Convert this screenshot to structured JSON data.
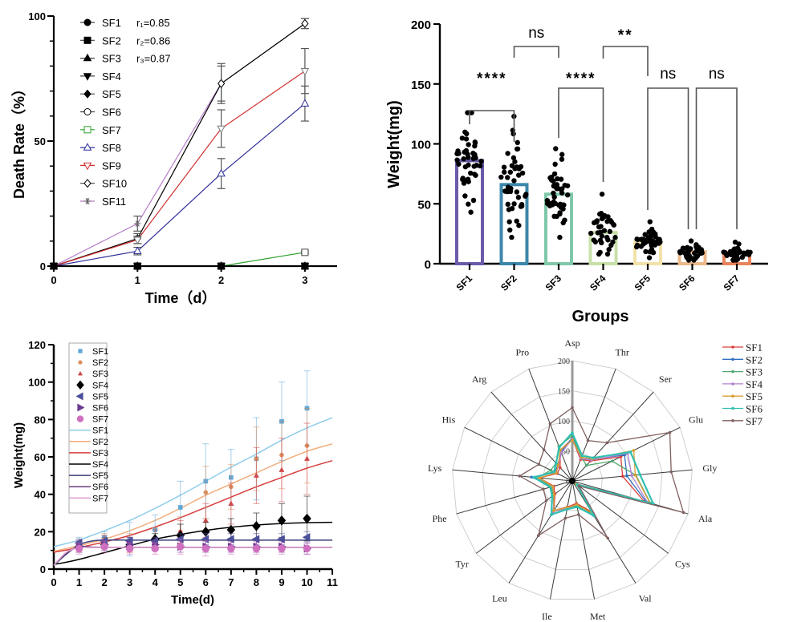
{
  "chart_data": [
    {
      "id": "death-rate",
      "type": "line",
      "title": "",
      "xlabel": "Time（d）",
      "ylabel": "Death Rate（%）",
      "xlim": [
        0,
        3
      ],
      "ylim": [
        0,
        100
      ],
      "x": [
        0,
        1,
        2,
        3
      ],
      "x_ticks": [
        "0",
        "1",
        "2",
        "3"
      ],
      "y_ticks": [
        "0",
        "50",
        "100"
      ],
      "grid": false,
      "legend_position": "top-left",
      "annotations": [
        "r₁=0.85",
        "r₂=0.86",
        "r₃=0.87"
      ],
      "series": [
        {
          "name": "SF1",
          "marker": "filled-circle",
          "color": "#000000",
          "values": [
            0,
            0,
            0,
            0
          ],
          "errors": [
            0,
            0,
            0,
            0
          ]
        },
        {
          "name": "SF2",
          "marker": "filled-square",
          "color": "#000000",
          "values": [
            0,
            0,
            0,
            0
          ],
          "errors": [
            0,
            0,
            0,
            0
          ]
        },
        {
          "name": "SF3",
          "marker": "filled-triangle-up",
          "color": "#000000",
          "values": [
            0,
            0,
            0,
            0
          ],
          "errors": [
            0,
            0,
            0,
            0
          ]
        },
        {
          "name": "SF4",
          "marker": "filled-triangle-down",
          "color": "#000000",
          "values": [
            0,
            0,
            0,
            0
          ],
          "errors": [
            0,
            0,
            0,
            0
          ]
        },
        {
          "name": "SF5",
          "marker": "filled-diamond",
          "color": "#000000",
          "values": [
            0,
            0,
            0,
            0
          ],
          "errors": [
            0,
            0,
            0,
            0
          ]
        },
        {
          "name": "SF6",
          "marker": "open-circle",
          "color": "#000000",
          "values": [
            0,
            0,
            0,
            0
          ],
          "errors": [
            0,
            0,
            0,
            0
          ]
        },
        {
          "name": "SF7",
          "marker": "open-square",
          "color": "#2CA02C",
          "values": [
            0,
            0,
            0,
            5.5
          ],
          "errors": [
            0,
            0,
            0,
            0.5
          ]
        },
        {
          "name": "SF8",
          "marker": "open-triangle-up",
          "color": "#2E2E9A",
          "values": [
            0,
            6,
            37,
            65
          ],
          "errors": [
            0,
            1.5,
            6,
            7
          ]
        },
        {
          "name": "SF9",
          "marker": "open-triangle-down",
          "color": "#D03030",
          "values": [
            0,
            10.5,
            55,
            78
          ],
          "errors": [
            0,
            1.5,
            7.5,
            9
          ]
        },
        {
          "name": "SF10",
          "marker": "open-diamond",
          "color": "#000000",
          "values": [
            0,
            11,
            73,
            97
          ],
          "errors": [
            0,
            2,
            7,
            2
          ]
        },
        {
          "name": "SF11",
          "marker": "asterisk",
          "color": "#B57BC8",
          "values": [
            0,
            17,
            73,
            97
          ],
          "errors": [
            0,
            3,
            8,
            2
          ]
        }
      ]
    },
    {
      "id": "group-weight",
      "type": "bar",
      "title": "",
      "xlabel": "Groups",
      "ylabel": "Weight(mg)",
      "ylim": [
        0,
        200
      ],
      "y_ticks": [
        "0",
        "50",
        "100",
        "150",
        "200"
      ],
      "grid": false,
      "categories": [
        "SF1",
        "SF2",
        "SF3",
        "SF4",
        "SF5",
        "SF6",
        "SF7"
      ],
      "values": [
        86,
        66,
        58,
        26,
        18,
        10,
        9
      ],
      "colors": [
        "#6A5AA8",
        "#3C86AA",
        "#80C8AA",
        "#C8E0A8",
        "#F2E2A8",
        "#EDB88A",
        "#E8845C"
      ],
      "points": [
        {
          "n": 45,
          "min": 43,
          "max": 126
        },
        {
          "n": 45,
          "min": 22,
          "max": 123
        },
        {
          "n": 45,
          "min": 22,
          "max": 96
        },
        {
          "n": 40,
          "min": 8,
          "max": 58
        },
        {
          "n": 40,
          "min": 5,
          "max": 35
        },
        {
          "n": 40,
          "min": 3,
          "max": 19
        },
        {
          "n": 40,
          "min": 3,
          "max": 18
        }
      ],
      "significance": [
        {
          "groups": [
            "SF1",
            "SF2"
          ],
          "label": "****"
        },
        {
          "groups": [
            "SF2",
            "SF3"
          ],
          "label": "ns"
        },
        {
          "groups": [
            "SF3",
            "SF4"
          ],
          "label": "****"
        },
        {
          "groups": [
            "SF4",
            "SF5"
          ],
          "label": "**"
        },
        {
          "groups": [
            "SF5",
            "SF6"
          ],
          "label": "ns"
        },
        {
          "groups": [
            "SF6",
            "SF7"
          ],
          "label": "ns"
        }
      ]
    },
    {
      "id": "growth-curve",
      "type": "scatter",
      "title": "",
      "xlabel": "Time(d)",
      "ylabel": "Weight(mg)",
      "xlim": [
        0,
        11
      ],
      "ylim": [
        0,
        120
      ],
      "x_ticks": [
        "0",
        "1",
        "2",
        "3",
        "4",
        "5",
        "6",
        "7",
        "8",
        "9",
        "10",
        "11"
      ],
      "y_ticks": [
        "0",
        "20",
        "40",
        "60",
        "80",
        "100",
        "120"
      ],
      "grid": false,
      "legend_position": "top-left",
      "x": [
        1,
        2,
        3,
        4,
        5,
        6,
        7,
        8,
        9,
        10
      ],
      "curve_x": [
        0,
        0.5,
        1,
        1.5,
        2,
        3,
        4,
        5,
        6,
        7,
        8,
        9,
        10,
        11
      ],
      "series": [
        {
          "name": "SF1",
          "marker": "square",
          "color": "#5FA8D8",
          "line_color": "#8ECDEA",
          "values": [
            14,
            17,
            16,
            21,
            33,
            47,
            49,
            59,
            79,
            86
          ],
          "errors": [
            3,
            3,
            9,
            8,
            14,
            20,
            15,
            22,
            21,
            20
          ],
          "fit": [
            12,
            13.7,
            15.5,
            18,
            20.5,
            26,
            32.5,
            39.5,
            47,
            54.5,
            61.5,
            69,
            75.5,
            81
          ]
        },
        {
          "name": "SF2",
          "marker": "circle",
          "color": "#D98E5E",
          "line_color": "#F2AE7E",
          "values": [
            13,
            16,
            14,
            17,
            20,
            41,
            44,
            59,
            61,
            66
          ],
          "errors": [
            3,
            3,
            5,
            5,
            8,
            14,
            12,
            17,
            18,
            20
          ],
          "fit": [
            9.5,
            11,
            12.5,
            14.2,
            16,
            20.5,
            26,
            32.5,
            39.5,
            45.5,
            51.5,
            57.5,
            63,
            67
          ]
        },
        {
          "name": "SF3",
          "marker": "triangle-up",
          "color": "#D04848",
          "line_color": "#D83C3C",
          "values": [
            12,
            15,
            13,
            16,
            20,
            26,
            35,
            50,
            53,
            59
          ],
          "errors": [
            3,
            3,
            4,
            5,
            6,
            9,
            11,
            15,
            17,
            19
          ],
          "fit": [
            9,
            10.2,
            11.5,
            13,
            14.5,
            18,
            22.5,
            27.5,
            33,
            38.5,
            44,
            49,
            54,
            58
          ]
        },
        {
          "name": "SF4",
          "marker": "diamond",
          "color": "#000000",
          "line_color": "#000000",
          "values": [
            12,
            13,
            13,
            16,
            18,
            20,
            21,
            23,
            26,
            27
          ],
          "errors": [
            2,
            2,
            2,
            3,
            6,
            5,
            6,
            7,
            9,
            12
          ],
          "fit": [
            2.5,
            3.7,
            5.2,
            7,
            8.8,
            12.5,
            16,
            18.5,
            20.7,
            22.4,
            23.6,
            24.4,
            24.8,
            25
          ]
        },
        {
          "name": "SF5",
          "marker": "triangle-left",
          "color": "#4A4F9A",
          "line_color": "#3A3F7A",
          "values": [
            14,
            15,
            15,
            15,
            16,
            16,
            16,
            16,
            16,
            17
          ],
          "errors": [
            2,
            2,
            2,
            2,
            3,
            3,
            3,
            3,
            3,
            3
          ],
          "fit": [
            2,
            8,
            13,
            15,
            15.5,
            15.5,
            15.5,
            15.5,
            15.5,
            15.5,
            15.5,
            15.5,
            15.5,
            15.5
          ]
        },
        {
          "name": "SF6",
          "marker": "triangle-right",
          "color": "#6A3A90",
          "line_color": "#6A3A7A",
          "values": [
            12,
            13,
            13,
            13,
            12,
            12,
            12,
            12,
            12,
            11
          ],
          "errors": [
            3,
            3,
            3,
            3,
            3,
            3,
            3,
            3,
            3,
            3
          ],
          "fit": [
            2,
            8.5,
            12,
            11.8,
            11.6,
            11.6,
            11.6,
            11.6,
            11.6,
            11.6,
            11.6,
            11.6,
            11.6,
            11.6
          ]
        },
        {
          "name": "SF7",
          "marker": "circle-large",
          "color": "#D070C0",
          "line_color": "#E0A0D0",
          "values": [
            11,
            12,
            11,
            11,
            12,
            11,
            11,
            11,
            11,
            11
          ],
          "errors": [
            3,
            3,
            3,
            3,
            4,
            4,
            3,
            3,
            3,
            3
          ],
          "fit": [
            2,
            9,
            11.5,
            11.5,
            11.5,
            11.5,
            11.5,
            11.5,
            11.5,
            11.5,
            11.5,
            11.5,
            11.5,
            11.5
          ]
        }
      ]
    },
    {
      "id": "amino-acid-radar",
      "type": "radar",
      "title": "",
      "axes": [
        "Asp",
        "Thr",
        "Ser",
        "Glu",
        "Gly",
        "Ala",
        "Cys",
        "Val",
        "Met",
        "Ile",
        "Leu",
        "Tyr",
        "Phe",
        "Lys",
        "His",
        "Arg",
        "Pro"
      ],
      "rlim": [
        0,
        200
      ],
      "r_ticks": [
        "0",
        "50",
        "100",
        "150",
        "200"
      ],
      "grid": true,
      "legend_position": "right",
      "series": [
        {
          "name": "SF1",
          "color": "#D9403A",
          "values": [
            70,
            38,
            45,
            90,
            84,
            124,
            8,
            60,
            38,
            44,
            58,
            36,
            32,
            55,
            28,
            30,
            55
          ]
        },
        {
          "name": "SF2",
          "color": "#3070C0",
          "values": [
            72,
            40,
            48,
            97,
            91,
            128,
            8,
            65,
            40,
            46,
            60,
            38,
            34,
            68,
            32,
            36,
            52
          ]
        },
        {
          "name": "SF3",
          "color": "#50A870",
          "values": [
            75,
            42,
            35,
            74,
            106,
            135,
            10,
            62,
            42,
            45,
            58,
            40,
            36,
            58,
            40,
            40,
            62
          ]
        },
        {
          "name": "SF4",
          "color": "#B080D0",
          "values": [
            70,
            40,
            47,
            103,
            99,
            130,
            8,
            63,
            40,
            46,
            60,
            38,
            34,
            56,
            30,
            34,
            50
          ]
        },
        {
          "name": "SF5",
          "color": "#D8A030",
          "values": [
            68,
            42,
            50,
            114,
            105,
            134,
            8,
            63,
            40,
            45,
            58,
            38,
            34,
            55,
            30,
            35,
            55
          ]
        },
        {
          "name": "SF6",
          "color": "#30C0B0",
          "values": [
            80,
            45,
            52,
            108,
            113,
            140,
            10,
            68,
            44,
            48,
            66,
            42,
            38,
            64,
            34,
            40,
            60
          ]
        },
        {
          "name": "SF7",
          "color": "#806060",
          "values": [
            122,
            72,
            86,
            181,
            165,
            192,
            14,
            112,
            57,
            63,
            107,
            54,
            50,
            88,
            62,
            70,
            102
          ]
        }
      ]
    }
  ]
}
